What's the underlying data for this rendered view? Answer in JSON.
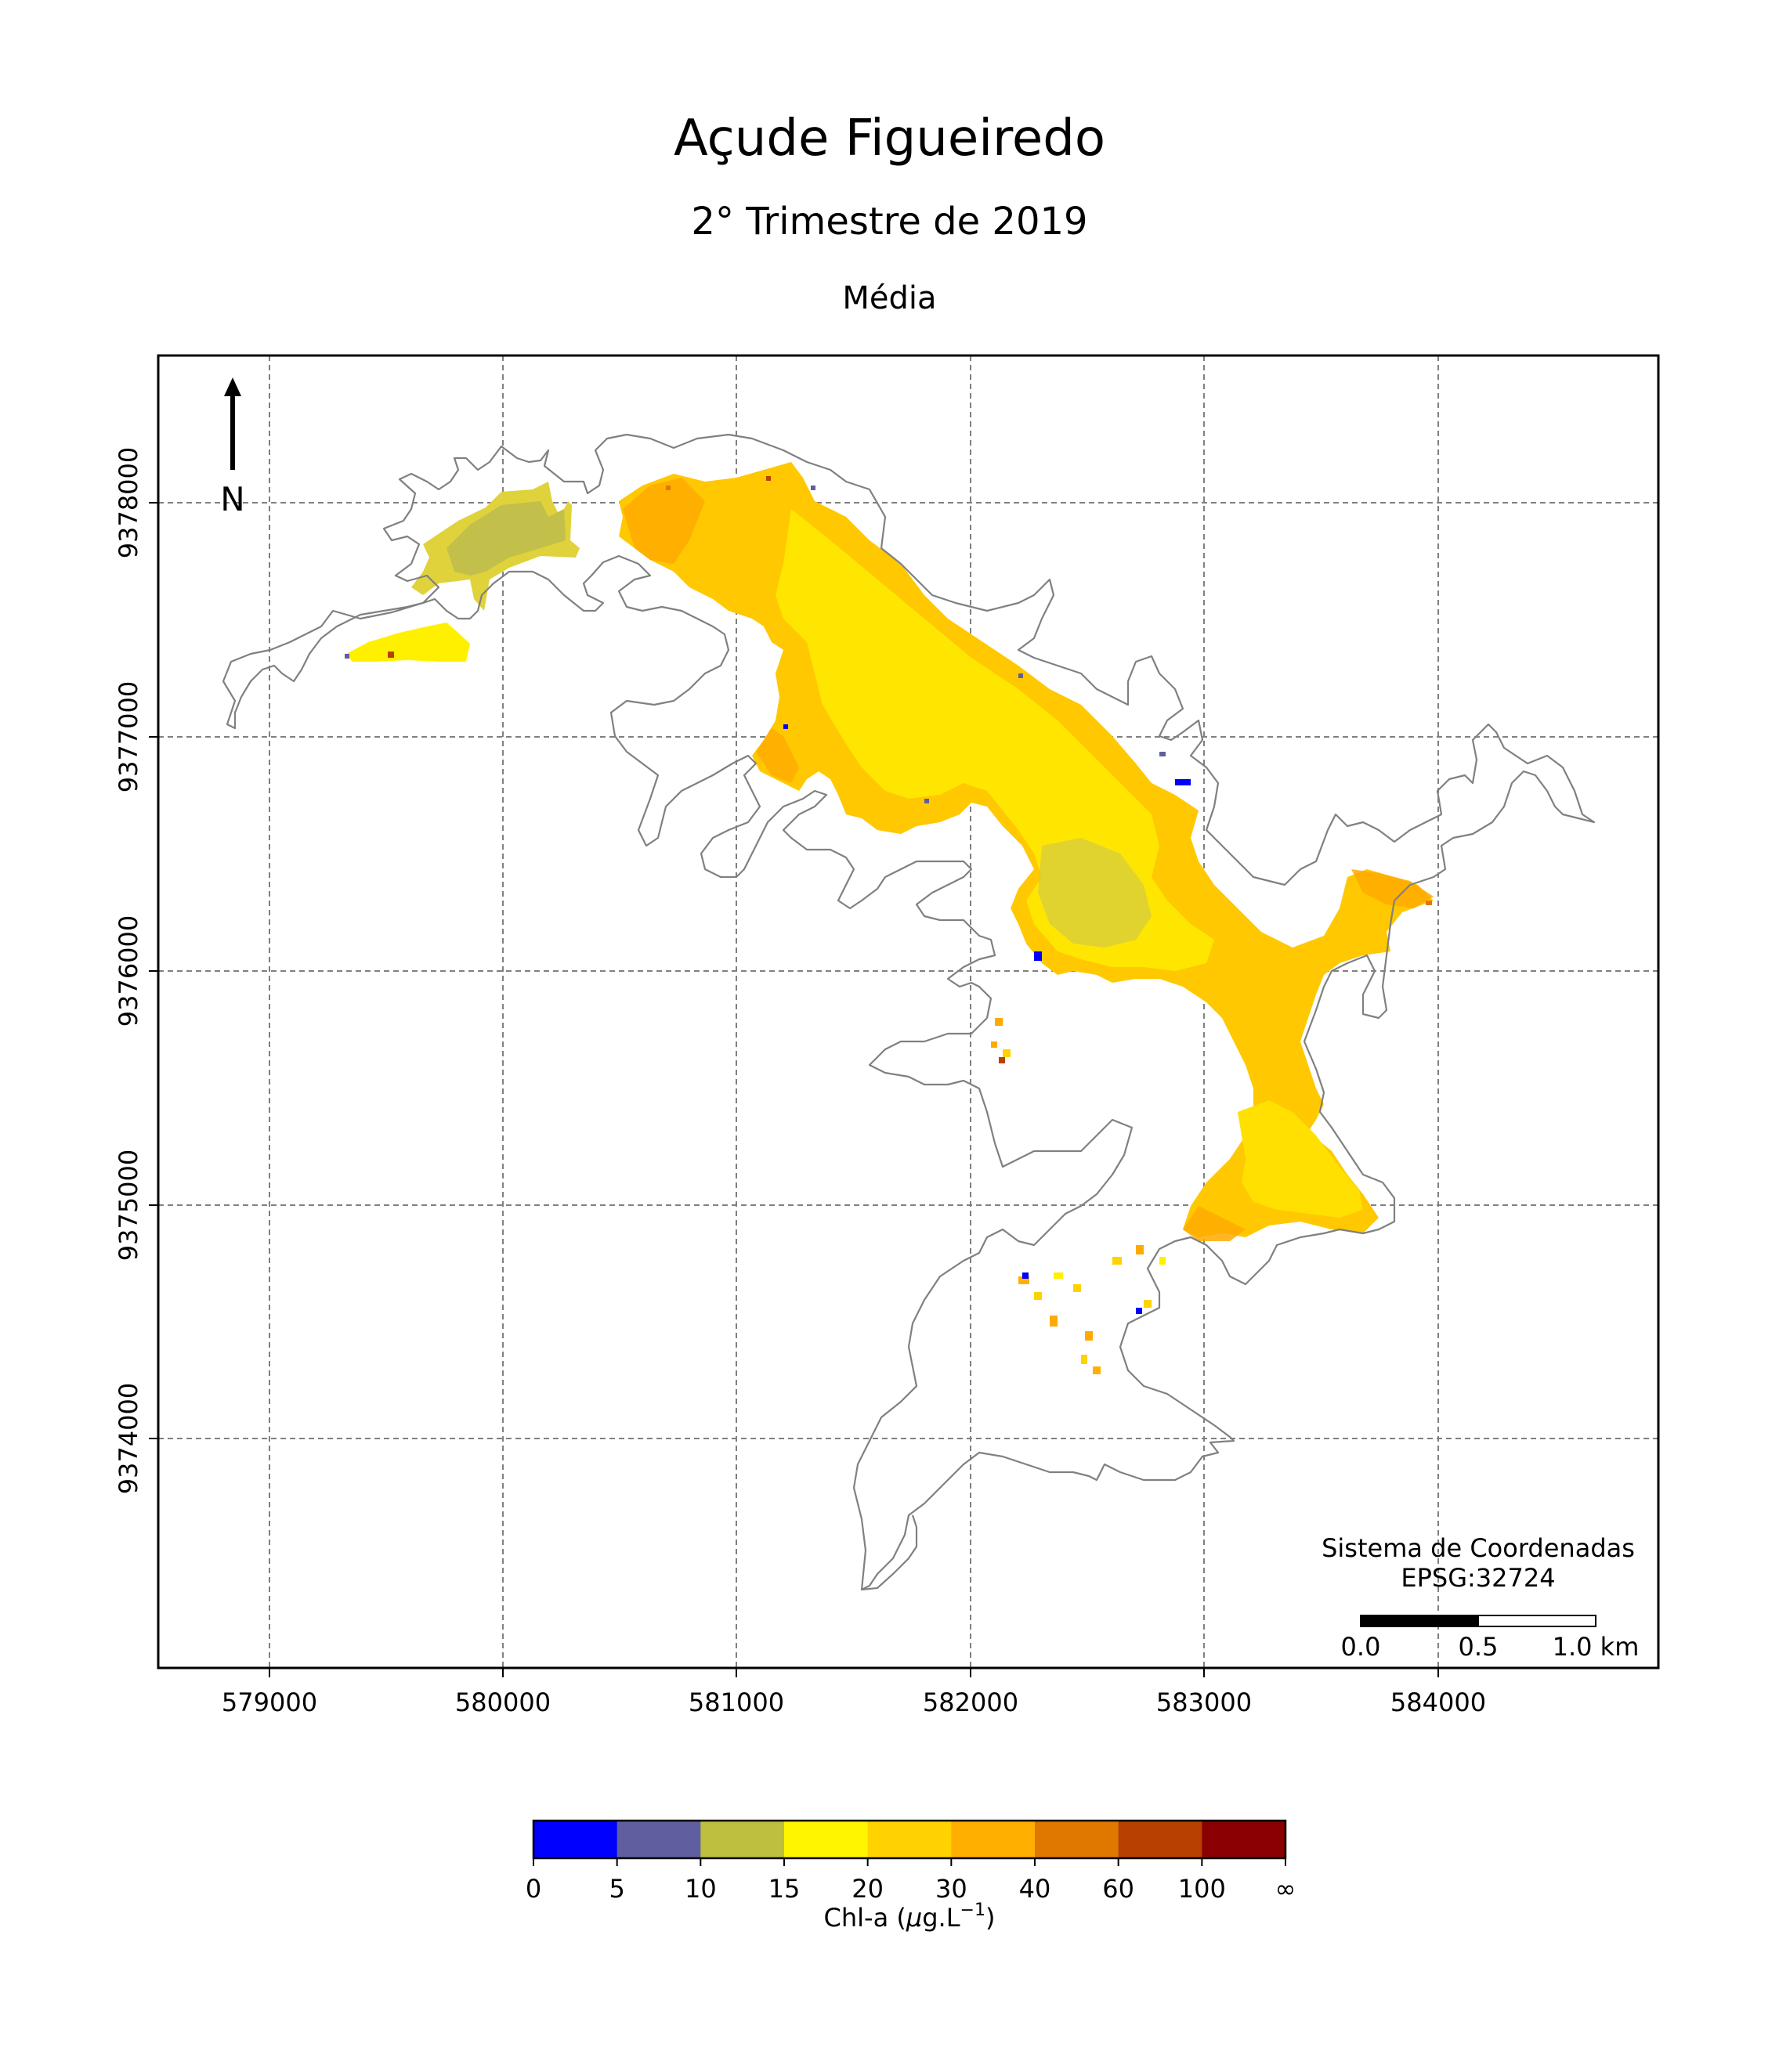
{
  "title": "Açude Figueiredo",
  "subtitle": "2° Trimestre de 2019",
  "statistic": "Média",
  "north_label": "N",
  "crs": {
    "line1": "Sistema de Coordenadas",
    "line2": "EPSG:32724"
  },
  "scale_bar": {
    "labels": [
      "0.0",
      "0.5",
      "1.0 km"
    ],
    "units_km": [
      0,
      0.5,
      1.0
    ]
  },
  "axes": {
    "x_ticks": [
      "579000",
      "580000",
      "581000",
      "582000",
      "583000",
      "584000"
    ],
    "y_ticks": [
      "9378000",
      "9377000",
      "9376000",
      "9375000",
      "9374000"
    ],
    "xlim": [
      578520,
      584940
    ],
    "ylim": [
      9373020,
      9378630
    ],
    "grid": true
  },
  "colorbar": {
    "label_text": "Chl-a (",
    "label_mu": "μ",
    "label_unit": "g.L",
    "label_sup": "−1",
    "label_end": ")",
    "tick_labels": [
      "0",
      "5",
      "10",
      "15",
      "20",
      "30",
      "40",
      "60",
      "100",
      "∞"
    ],
    "colors": [
      "#0000ff",
      "#5f5f9f",
      "#bfbf3f",
      "#fff500",
      "#ffd200",
      "#ffaf00",
      "#e07800",
      "#b84000",
      "#8b0000"
    ]
  },
  "colors": {
    "outline": "#808080",
    "grid": "#808080"
  }
}
